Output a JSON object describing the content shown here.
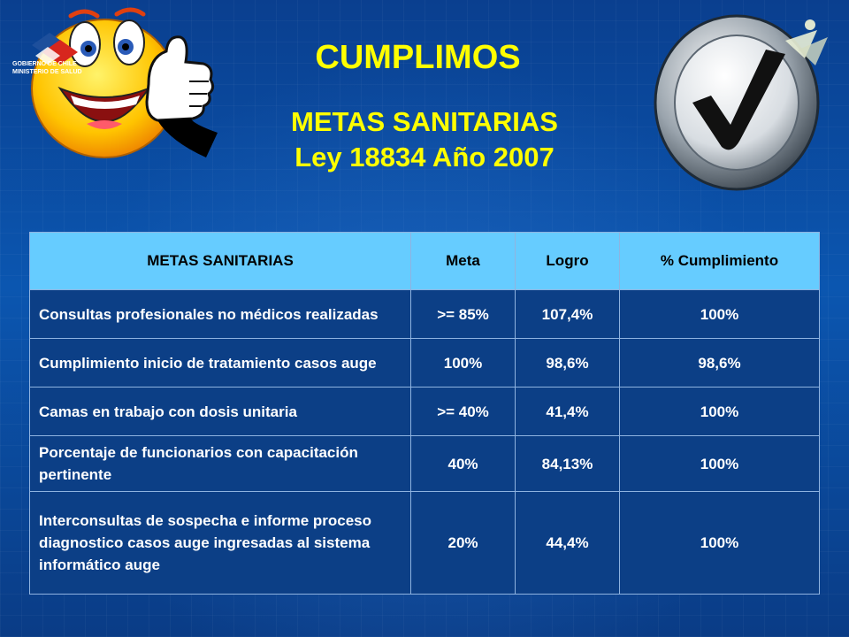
{
  "header": {
    "title": "CUMPLIMOS",
    "subtitle_line1": "METAS SANITARIAS",
    "subtitle_line2": "Ley 18834 Año 2007"
  },
  "logo": {
    "line1": "GOBIERNO DE CHILE",
    "line2": "MINISTERIO DE SALUD",
    "colors": [
      "#d7261e",
      "#1d4f9c",
      "#ffffff"
    ]
  },
  "icons": {
    "left": "thumbs-up-smiley-icon",
    "right": "checkmark-button-icon"
  },
  "table": {
    "headers": [
      "METAS SANITARIAS",
      "Meta",
      "Logro",
      "% Cumplimiento"
    ],
    "rows": [
      {
        "meta_name": "Consultas profesionales no médicos realizadas",
        "meta": ">= 85%",
        "logro": "107,4%",
        "cumplimiento": "100%"
      },
      {
        "meta_name": "Cumplimiento inicio de tratamiento casos auge",
        "meta": "100%",
        "logro": "98,6%",
        "cumplimiento": "98,6%"
      },
      {
        "meta_name": "Camas en trabajo con dosis unitaria",
        "meta": ">= 40%",
        "logro": "41,4%",
        "cumplimiento": "100%"
      },
      {
        "meta_name": "Porcentaje de funcionarios con capacitación pertinente",
        "meta": "40%",
        "logro": "84,13%",
        "cumplimiento": "100%"
      },
      {
        "meta_name": "Interconsultas de sospecha e informe proceso diagnostico casos auge ingresadas al sistema informático auge",
        "meta": "20%",
        "logro": "44,4%",
        "cumplimiento": "100%"
      }
    ]
  },
  "colors": {
    "title": "#ffff00",
    "header_bg": "#66ccff",
    "cell_bg": "#0c3f86",
    "background": "#0b56b0"
  }
}
